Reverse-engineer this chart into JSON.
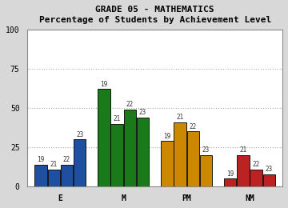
{
  "title_line1": "GRADE 05 - MATHEMATICS",
  "title_line2": "Percentage of Students by Achievement Level",
  "categories": [
    "E",
    "M",
    "PM",
    "NM"
  ],
  "year_labels": [
    "19",
    "21",
    "22",
    "23"
  ],
  "values": {
    "E": [
      14,
      11,
      14,
      30
    ],
    "M": [
      62,
      40,
      49,
      44
    ],
    "PM": [
      29,
      41,
      35,
      20
    ],
    "NM": [
      5,
      20,
      11,
      8
    ]
  },
  "cat_colors": {
    "E": "#1e4fa0",
    "M": "#1a7a1a",
    "PM": "#cc8800",
    "NM": "#bb2222"
  },
  "ylim": [
    0,
    100
  ],
  "yticks": [
    0,
    25,
    50,
    75,
    100
  ],
  "fig_bg": "#d8d8d8",
  "plot_bg": "#ffffff",
  "grid_color": "#aaaaaa",
  "border_color": "#888888",
  "font_family": "monospace",
  "title_fontsize": 8,
  "subtitle_fontsize": 7.5,
  "tick_fontsize": 7,
  "bar_label_fontsize": 5.5
}
